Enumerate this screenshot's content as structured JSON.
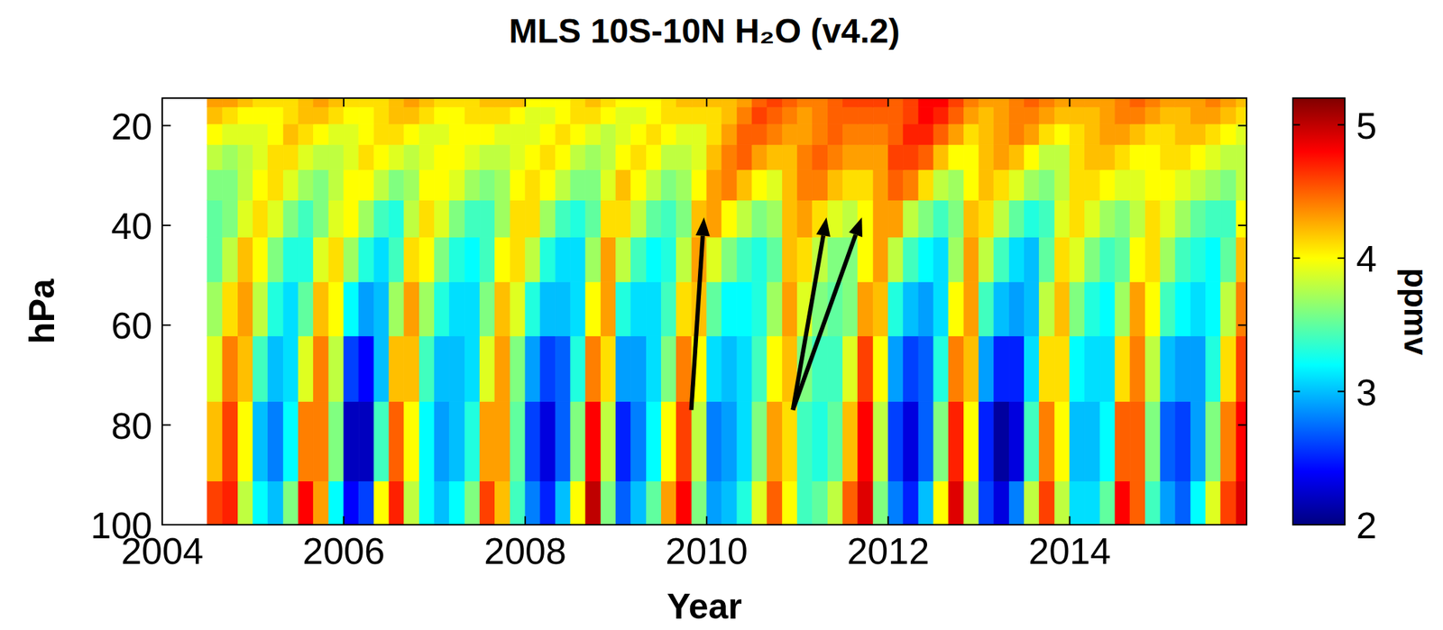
{
  "chart_data": {
    "type": "heatmap",
    "title": "MLS 10S-10N H₂O (v4.2)",
    "x_label": "Year",
    "y_label": "hPa",
    "xlim": [
      2004,
      2015.95
    ],
    "ylim": [
      100,
      14.5
    ],
    "xticks": [
      2004,
      2006,
      2008,
      2010,
      2012,
      2014
    ],
    "yticks": [
      20,
      40,
      60,
      80,
      100
    ],
    "x": [
      2004.58,
      2004.75,
      2004.92,
      2005.08,
      2005.25,
      2005.42,
      2005.58,
      2005.75,
      2005.92,
      2006.08,
      2006.25,
      2006.42,
      2006.58,
      2006.75,
      2006.92,
      2007.08,
      2007.25,
      2007.42,
      2007.58,
      2007.75,
      2007.92,
      2008.08,
      2008.25,
      2008.42,
      2008.58,
      2008.75,
      2008.92,
      2009.08,
      2009.25,
      2009.42,
      2009.58,
      2009.75,
      2009.92,
      2010.08,
      2010.25,
      2010.42,
      2010.58,
      2010.75,
      2010.92,
      2011.08,
      2011.25,
      2011.42,
      2011.58,
      2011.75,
      2011.92,
      2012.08,
      2012.25,
      2012.42,
      2012.58,
      2012.75,
      2012.92,
      2013.08,
      2013.25,
      2013.42,
      2013.58,
      2013.75,
      2013.92,
      2014.08,
      2014.25,
      2014.42,
      2014.58,
      2014.75,
      2014.92,
      2015.08,
      2015.25,
      2015.42,
      2015.58,
      2015.75,
      2015.92
    ],
    "y": [
      100,
      82.5,
      68.1,
      56.2,
      46.4,
      38.3,
      31.6,
      26.1,
      21.5,
      17.8,
      14.7
    ],
    "values": [
      [
        4.6,
        4.7,
        3.8,
        3.2,
        3.0,
        3.6,
        4.8,
        4.3,
        3.2,
        2.4,
        2.6,
        4.0,
        4.7,
        3.8,
        3.2,
        3.0,
        3.2,
        3.6,
        4.6,
        4.2,
        3.4,
        2.8,
        2.5,
        3.0,
        4.0,
        5.0,
        3.6,
        2.7,
        3.0,
        3.5,
        4.3,
        4.8,
        3.6,
        2.9,
        3.0,
        3.3,
        3.9,
        4.5,
        4.0,
        3.4,
        3.5,
        3.8,
        4.5,
        4.9,
        3.6,
        2.8,
        2.5,
        3.0,
        4.0,
        4.9,
        3.8,
        2.6,
        2.3,
        2.8,
        3.8,
        4.6,
        3.8,
        3.1,
        3.1,
        3.5,
        4.8,
        4.5,
        3.4,
        2.9,
        2.7,
        3.2,
        3.9,
        4.6,
        4.9
      ],
      [
        4.2,
        4.6,
        4.0,
        3.0,
        2.8,
        3.2,
        4.4,
        4.4,
        3.6,
        2.2,
        2.2,
        3.4,
        4.5,
        4.0,
        3.2,
        2.9,
        3.0,
        3.3,
        4.3,
        4.3,
        3.5,
        2.6,
        2.3,
        2.7,
        3.6,
        4.8,
        3.8,
        2.5,
        2.8,
        3.2,
        4.0,
        4.6,
        3.8,
        2.8,
        2.9,
        3.1,
        3.6,
        4.3,
        4.1,
        3.4,
        3.3,
        3.5,
        4.2,
        4.8,
        3.8,
        2.6,
        2.3,
        2.7,
        3.6,
        4.7,
        4.0,
        2.5,
        2.1,
        2.3,
        3.4,
        4.4,
        4.0,
        3.0,
        3.0,
        3.2,
        4.5,
        4.5,
        3.6,
        2.7,
        2.6,
        2.9,
        3.6,
        4.4,
        4.8
      ],
      [
        3.9,
        4.4,
        4.2,
        3.4,
        3.0,
        3.1,
        3.9,
        4.4,
        3.8,
        2.6,
        2.4,
        3.0,
        4.2,
        4.2,
        3.4,
        3.0,
        3.0,
        3.1,
        3.9,
        4.3,
        3.6,
        2.9,
        2.6,
        2.7,
        3.3,
        4.4,
        4.1,
        2.9,
        2.9,
        3.1,
        3.6,
        4.4,
        4.0,
        3.1,
        3.0,
        3.1,
        3.4,
        4.0,
        4.2,
        3.6,
        3.4,
        3.4,
        3.9,
        4.6,
        4.0,
        2.9,
        2.6,
        2.7,
        3.3,
        4.4,
        4.2,
        2.9,
        2.5,
        2.5,
        3.1,
        4.1,
        4.1,
        3.2,
        3.1,
        3.1,
        4.1,
        4.4,
        3.8,
        3.0,
        2.9,
        2.9,
        3.3,
        4.1,
        4.6
      ],
      [
        3.7,
        4.1,
        4.3,
        3.8,
        3.3,
        3.1,
        3.5,
        4.2,
        4.0,
        3.2,
        2.9,
        3.0,
        3.7,
        4.3,
        3.7,
        3.3,
        3.1,
        3.1,
        3.6,
        4.2,
        3.9,
        3.3,
        3.0,
        3.0,
        3.1,
        4.0,
        4.3,
        3.3,
        3.1,
        3.1,
        3.4,
        4.1,
        4.2,
        3.5,
        3.2,
        3.2,
        3.3,
        3.7,
        4.3,
        3.9,
        3.6,
        3.5,
        3.6,
        4.3,
        4.2,
        3.3,
        3.0,
        2.9,
        3.1,
        4.0,
        4.3,
        3.4,
        3.0,
        2.9,
        3.0,
        3.8,
        4.2,
        3.6,
        3.3,
        3.2,
        3.7,
        4.3,
        4.0,
        3.4,
        3.2,
        3.1,
        3.2,
        3.8,
        4.4
      ],
      [
        3.5,
        3.8,
        4.2,
        4.0,
        3.6,
        3.3,
        3.3,
        3.9,
        4.1,
        3.7,
        3.3,
        3.1,
        3.4,
        4.1,
        4.0,
        3.6,
        3.3,
        3.2,
        3.4,
        4.0,
        4.1,
        3.8,
        3.3,
        3.1,
        3.1,
        3.7,
        4.3,
        3.8,
        3.4,
        3.2,
        3.3,
        3.8,
        4.3,
        3.9,
        3.6,
        3.4,
        3.3,
        3.5,
        4.2,
        4.1,
        3.8,
        3.6,
        3.6,
        4.0,
        4.3,
        3.8,
        3.4,
        3.2,
        3.1,
        3.7,
        4.3,
        3.8,
        3.4,
        3.1,
        3.0,
        3.5,
        4.1,
        3.9,
        3.6,
        3.4,
        3.5,
        4.0,
        4.1,
        3.7,
        3.4,
        3.3,
        3.2,
        3.5,
        4.2
      ],
      [
        3.5,
        3.6,
        3.9,
        4.1,
        3.9,
        3.6,
        3.4,
        3.6,
        3.9,
        4.0,
        3.7,
        3.4,
        3.3,
        3.8,
        4.1,
        3.9,
        3.6,
        3.4,
        3.4,
        3.7,
        4.1,
        4.1,
        3.7,
        3.4,
        3.3,
        3.5,
        4.1,
        4.1,
        3.8,
        3.5,
        3.4,
        3.6,
        4.2,
        4.3,
        4.0,
        3.8,
        3.6,
        3.7,
        4.2,
        4.3,
        4.1,
        3.9,
        3.8,
        4.0,
        4.3,
        4.3,
        3.8,
        3.6,
        3.4,
        3.6,
        4.2,
        4.1,
        3.8,
        3.5,
        3.3,
        3.4,
        3.9,
        4.1,
        3.9,
        3.7,
        3.6,
        3.8,
        4.1,
        3.9,
        3.7,
        3.5,
        3.4,
        3.4,
        4.0
      ],
      [
        3.6,
        3.6,
        3.8,
        4.0,
        4.1,
        3.9,
        3.7,
        3.6,
        3.8,
        4.0,
        4.0,
        3.8,
        3.6,
        3.7,
        4.0,
        4.0,
        3.9,
        3.7,
        3.6,
        3.7,
        4.0,
        4.1,
        4.0,
        3.8,
        3.6,
        3.6,
        3.9,
        4.2,
        4.0,
        3.8,
        3.6,
        3.7,
        4.0,
        4.3,
        4.4,
        4.2,
        4.0,
        3.9,
        4.2,
        4.4,
        4.4,
        4.2,
        4.1,
        4.1,
        4.3,
        4.5,
        4.4,
        4.1,
        3.8,
        3.7,
        4.0,
        4.2,
        4.1,
        3.9,
        3.7,
        3.6,
        3.8,
        4.1,
        4.1,
        4.0,
        3.9,
        3.9,
        4.0,
        4.0,
        3.9,
        3.8,
        3.7,
        3.6,
        3.8
      ],
      [
        3.8,
        3.7,
        3.8,
        3.9,
        4.1,
        4.1,
        3.9,
        3.8,
        3.8,
        3.9,
        4.1,
        4.0,
        3.9,
        3.8,
        3.9,
        4.0,
        4.0,
        3.9,
        3.8,
        3.8,
        3.9,
        4.0,
        4.1,
        4.0,
        3.8,
        3.7,
        3.8,
        4.0,
        4.1,
        4.0,
        3.8,
        3.8,
        3.9,
        4.2,
        4.4,
        4.5,
        4.3,
        4.2,
        4.2,
        4.4,
        4.5,
        4.4,
        4.3,
        4.3,
        4.3,
        4.6,
        4.6,
        4.5,
        4.2,
        4.0,
        4.0,
        4.2,
        4.3,
        4.2,
        4.0,
        3.8,
        3.8,
        4.1,
        4.2,
        4.2,
        4.1,
        4.0,
        4.0,
        4.1,
        4.1,
        4.0,
        3.9,
        3.8,
        3.8
      ],
      [
        4.0,
        3.9,
        3.9,
        3.9,
        4.0,
        4.2,
        4.1,
        4.0,
        3.9,
        3.9,
        4.0,
        4.1,
        4.1,
        4.0,
        3.9,
        3.9,
        4.0,
        4.0,
        4.0,
        3.9,
        3.9,
        3.9,
        4.0,
        4.1,
        4.0,
        3.9,
        3.8,
        3.9,
        4.0,
        4.1,
        4.0,
        3.9,
        3.9,
        4.1,
        4.3,
        4.5,
        4.5,
        4.4,
        4.3,
        4.3,
        4.4,
        4.5,
        4.4,
        4.4,
        4.4,
        4.5,
        4.7,
        4.7,
        4.5,
        4.3,
        4.1,
        4.2,
        4.3,
        4.4,
        4.3,
        4.1,
        4.0,
        4.1,
        4.2,
        4.3,
        4.3,
        4.2,
        4.1,
        4.1,
        4.2,
        4.2,
        4.1,
        4.0,
        3.9
      ],
      [
        4.2,
        4.1,
        4.0,
        4.0,
        4.0,
        4.1,
        4.2,
        4.2,
        4.1,
        4.0,
        4.0,
        4.1,
        4.2,
        4.2,
        4.1,
        4.0,
        4.0,
        4.1,
        4.1,
        4.1,
        4.0,
        3.9,
        3.9,
        4.0,
        4.1,
        4.1,
        4.0,
        3.9,
        3.9,
        4.0,
        4.1,
        4.1,
        4.1,
        4.1,
        4.2,
        4.4,
        4.6,
        4.5,
        4.4,
        4.3,
        4.4,
        4.5,
        4.5,
        4.5,
        4.5,
        4.5,
        4.6,
        4.8,
        4.7,
        4.5,
        4.3,
        4.2,
        4.3,
        4.4,
        4.4,
        4.3,
        4.2,
        4.2,
        4.2,
        4.3,
        4.4,
        4.4,
        4.3,
        4.2,
        4.2,
        4.3,
        4.3,
        4.2,
        4.1
      ],
      [
        4.3,
        4.3,
        4.2,
        4.1,
        4.1,
        4.1,
        4.2,
        4.3,
        4.2,
        4.1,
        4.1,
        4.1,
        4.2,
        4.3,
        4.2,
        4.1,
        4.1,
        4.1,
        4.2,
        4.2,
        4.2,
        4.0,
        4.0,
        4.0,
        4.1,
        4.2,
        4.1,
        4.0,
        4.0,
        4.0,
        4.1,
        4.2,
        4.2,
        4.2,
        4.2,
        4.3,
        4.5,
        4.6,
        4.5,
        4.4,
        4.4,
        4.5,
        4.6,
        4.6,
        4.6,
        4.5,
        4.6,
        4.8,
        4.8,
        4.6,
        4.4,
        4.3,
        4.3,
        4.4,
        4.5,
        4.4,
        4.3,
        4.3,
        4.3,
        4.3,
        4.4,
        4.5,
        4.4,
        4.3,
        4.3,
        4.3,
        4.4,
        4.3,
        4.2
      ]
    ],
    "colorbar": {
      "range": [
        2,
        5.2
      ],
      "ticks": [
        2,
        3,
        4,
        5
      ],
      "label": "ppmv"
    }
  }
}
